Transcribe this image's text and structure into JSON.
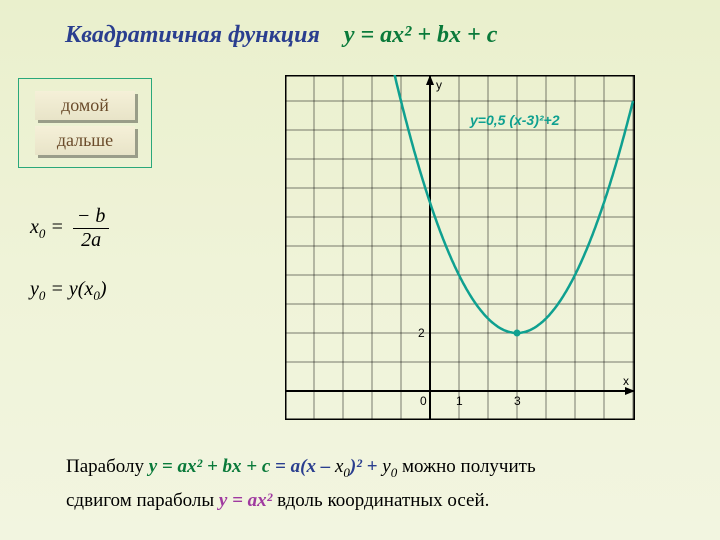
{
  "title": {
    "label_blue": "Квадратичная функция",
    "equation": "у = ах² + bх + c"
  },
  "buttons": {
    "home": "домой",
    "next": "дальше"
  },
  "formulas": {
    "x0_lhs": "x",
    "x0_sub": "0",
    "x0_eq": " = ",
    "x0_num": "− b",
    "x0_den": "2a",
    "y0_lhs": "y",
    "y0_sub": "0",
    "y0_eq": " = y(x",
    "y0_sub2": "0",
    "y0_close": ")"
  },
  "chart": {
    "curve_equation": "y=0,5 (x-3)²+2",
    "axes": {
      "x": "x",
      "y": "y"
    },
    "ticks": {
      "origin": "0",
      "x1": "1",
      "x3": "3",
      "y2": "2"
    },
    "parabola": {
      "a": 0.5,
      "h": 3,
      "k": 2
    },
    "grid": {
      "xmin": -5,
      "xmax": 7,
      "ymin": -1,
      "ymax": 11,
      "cell": 29
    },
    "colors": {
      "border": "#000000",
      "grid": "#000000",
      "curve": "#0fa090",
      "vertex_dot": "#0fa090",
      "bg": "none"
    }
  },
  "bottom": {
    "p1a": "Параболу ",
    "eq1": "у = ах² + bх + c",
    "p1b": " = ",
    "eq2a": "а(х – ",
    "x0": "x",
    "x0sub": "0",
    "eq2b": ")²",
    "plus": "  +  ",
    "y0": "y",
    "y0sub": "0",
    "p1c": " можно получить",
    "p2a": "сдвигом параболы ",
    "eq3": "у = ах²",
    "p2b": " вдоль координатных осей."
  }
}
